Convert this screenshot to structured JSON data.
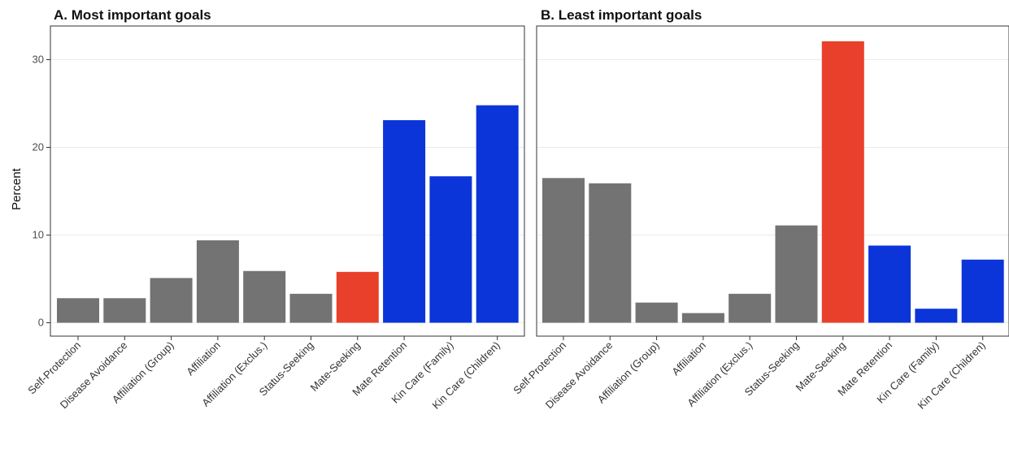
{
  "chart_data": {
    "type": "bar",
    "ylabel": "Percent",
    "ylim": [
      0,
      33.8
    ],
    "yticks": [
      0,
      10,
      20,
      30
    ],
    "grid": "horizontal",
    "legend": "none",
    "colors": {
      "other": "#737373",
      "mate_seeking": "#e8402a",
      "kin": "#0b35d8"
    },
    "categories": [
      "Self-Protection",
      "Disease Avoidance",
      "Affiliation (Group)",
      "Affiliation",
      "Affiliation (Exclus.)",
      "Status-Seeking",
      "Mate-Seeking",
      "Mate Retention",
      "Kin Care (Family)",
      "Kin Care (Children)"
    ],
    "bar_color_groups": [
      "other",
      "other",
      "other",
      "other",
      "other",
      "other",
      "mate_seeking",
      "kin",
      "kin",
      "kin"
    ],
    "panels": [
      {
        "title": "A. Most important goals",
        "values": [
          2.8,
          2.8,
          5.1,
          9.4,
          5.9,
          3.3,
          5.8,
          23.1,
          16.7,
          24.8
        ]
      },
      {
        "title": "B. Least important goals",
        "values": [
          16.5,
          15.9,
          2.3,
          1.1,
          3.3,
          11.1,
          32.1,
          8.8,
          1.6,
          7.2
        ]
      }
    ]
  }
}
